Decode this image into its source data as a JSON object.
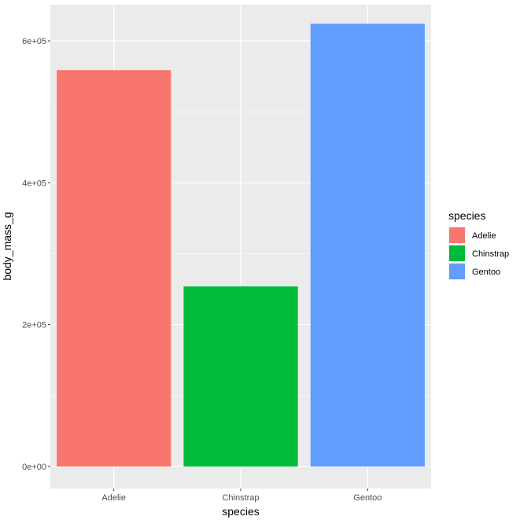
{
  "chart_data": {
    "type": "bar",
    "title": "",
    "xlabel": "species",
    "ylabel": "body_mass_g",
    "categories": [
      "Adelie",
      "Chinstrap",
      "Gentoo"
    ],
    "values": [
      558800,
      253850,
      624350
    ],
    "ylim": [
      0,
      650000
    ],
    "yticks": [
      0,
      200000,
      400000,
      600000
    ],
    "ytick_labels": [
      "0e+00",
      "2e+05",
      "4e+05",
      "6e+05"
    ],
    "colors": [
      "#F8766D",
      "#00BA38",
      "#619CFF"
    ],
    "grid": true,
    "background": "#EBEBEB",
    "legend": {
      "title": "species",
      "position": "right",
      "entries": [
        "Adelie",
        "Chinstrap",
        "Gentoo"
      ]
    }
  }
}
